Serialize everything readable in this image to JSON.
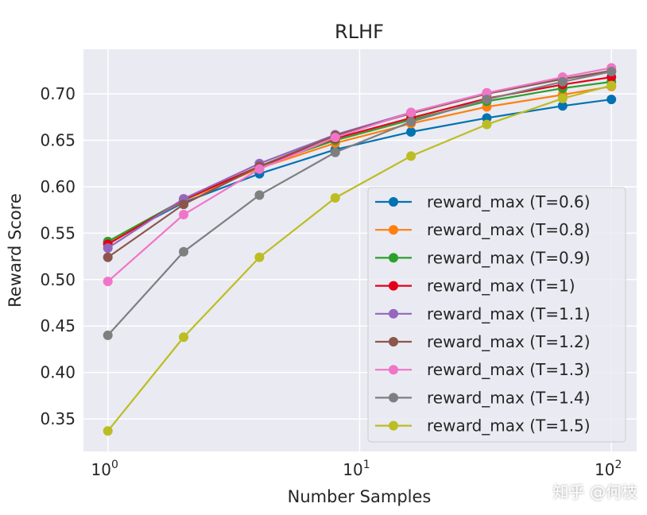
{
  "chart_data": {
    "type": "line",
    "title": "RLHF",
    "xlabel": "Number Samples",
    "ylabel": "Reward Score",
    "xscale": "log",
    "xlim": [
      0.8,
      126
    ],
    "ylim": [
      0.315,
      0.748
    ],
    "grid": true,
    "legend_position": "lower-right",
    "x": [
      1,
      2,
      4,
      8,
      16,
      32,
      64,
      100
    ],
    "x_ticks": [
      {
        "value": 1,
        "base": "10",
        "exp": "0"
      },
      {
        "value": 10,
        "base": "10",
        "exp": "1"
      },
      {
        "value": 100,
        "base": "10",
        "exp": "2"
      }
    ],
    "y_ticks": [
      "0.35",
      "0.40",
      "0.45",
      "0.50",
      "0.55",
      "0.60",
      "0.65",
      "0.70"
    ],
    "series": [
      {
        "name": "reward_max (T=0.6)",
        "color": "#0173b2",
        "values": [
          0.54,
          0.583,
          0.614,
          0.64,
          0.659,
          0.674,
          0.687,
          0.694
        ]
      },
      {
        "name": "reward_max (T=0.8)",
        "color": "#ff7f0e",
        "values": [
          0.539,
          0.585,
          0.62,
          0.647,
          0.668,
          0.686,
          0.699,
          0.708
        ]
      },
      {
        "name": "reward_max (T=0.9)",
        "color": "#2ca02c",
        "values": [
          0.541,
          0.586,
          0.622,
          0.65,
          0.672,
          0.692,
          0.706,
          0.713
        ]
      },
      {
        "name": "reward_max (T=1)",
        "color": "#e3001a",
        "values": [
          0.538,
          0.586,
          0.622,
          0.652,
          0.674,
          0.695,
          0.71,
          0.718
        ]
      },
      {
        "name": "reward_max (T=1.1)",
        "color": "#9467bd",
        "values": [
          0.534,
          0.587,
          0.625,
          0.656,
          0.68,
          0.701,
          0.716,
          0.724
        ]
      },
      {
        "name": "reward_max (T=1.2)",
        "color": "#8c564b",
        "values": [
          0.524,
          0.581,
          0.622,
          0.655,
          0.679,
          0.7,
          0.716,
          0.725
        ]
      },
      {
        "name": "reward_max (T=1.3)",
        "color": "#f075c8",
        "values": [
          0.498,
          0.57,
          0.619,
          0.653,
          0.68,
          0.701,
          0.718,
          0.728
        ]
      },
      {
        "name": "reward_max (T=1.4)",
        "color": "#7f7f7f",
        "values": [
          0.44,
          0.53,
          0.591,
          0.637,
          0.67,
          0.694,
          0.713,
          0.724
        ]
      },
      {
        "name": "reward_max (T=1.5)",
        "color": "#bcbd22",
        "values": [
          0.337,
          0.438,
          0.524,
          0.588,
          0.633,
          0.667,
          0.695,
          0.709
        ]
      }
    ]
  },
  "watermark": "知乎 @何枝"
}
